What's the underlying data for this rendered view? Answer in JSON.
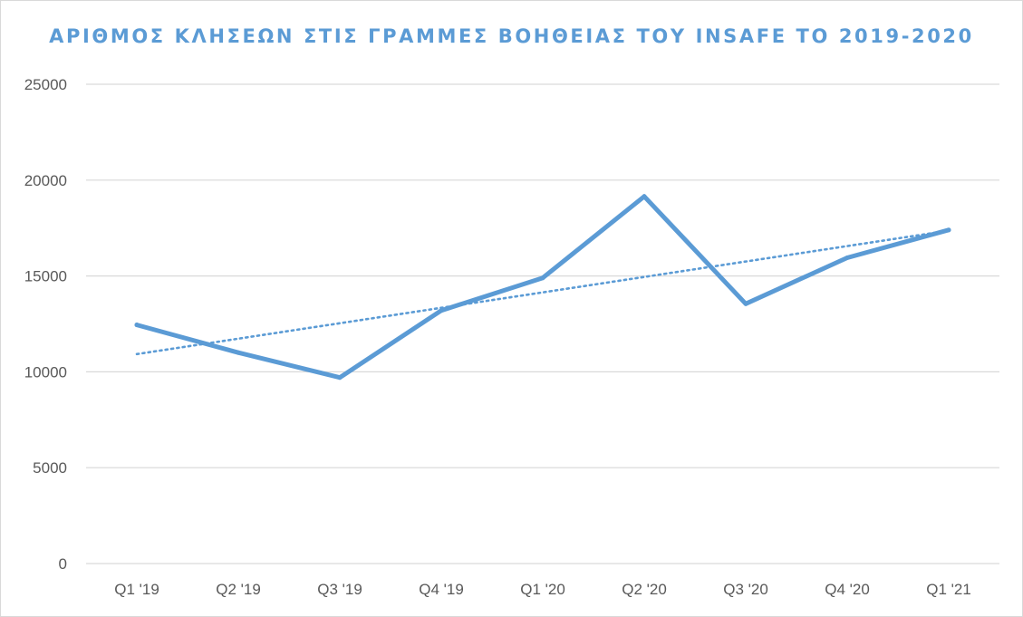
{
  "chart_data": {
    "type": "line",
    "title": "ΑΡΙΘΜΟΣ ΚΛΗΣΕΩΝ ΣΤΙΣ ΓΡΑΜΜΕΣ ΒΟΗΘΕΙΑΣ ΤΟΥ INSAFE ΤΟ 2019-2020",
    "xlabel": "",
    "ylabel": "",
    "categories": [
      "Q1 '19",
      "Q2 '19",
      "Q3 '19",
      "Q4 '19",
      "Q1 '20",
      "Q2 '20",
      "Q3 '20",
      "Q4 '20",
      "Q1 '21"
    ],
    "series": [
      {
        "values": [
          12450,
          11000,
          9700,
          13200,
          14900,
          19150,
          13550,
          15950,
          17400
        ],
        "color": "#5b9bd5"
      }
    ],
    "trendline": {
      "type": "linear",
      "style": "dotted",
      "color": "#5b9bd5"
    },
    "ylim": [
      0,
      25000
    ],
    "yticks": [
      0,
      5000,
      10000,
      15000,
      20000,
      25000
    ],
    "grid": true,
    "legend": "none"
  }
}
